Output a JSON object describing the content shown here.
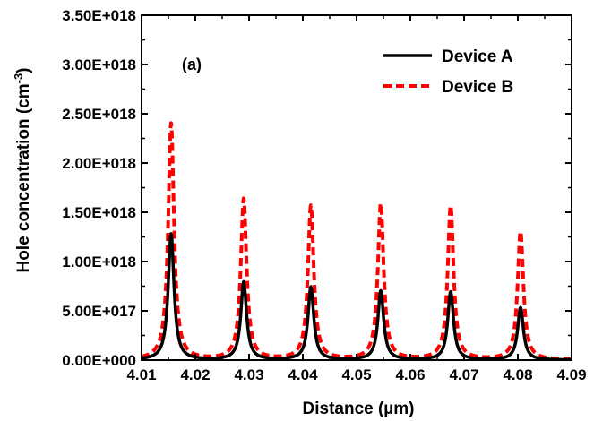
{
  "chart_data": {
    "type": "line",
    "annotation": "(a)",
    "xlabel": "Distance (µm)",
    "ylabel_prefix": "Hole concentration (cm",
    "ylabel_exp": "-3",
    "ylabel_suffix": ")",
    "xlim": [
      4.01,
      4.09
    ],
    "ylim": [
      0,
      3.5e+18
    ],
    "x_ticks": [
      4.01,
      4.02,
      4.03,
      4.04,
      4.05,
      4.06,
      4.07,
      4.08,
      4.09
    ],
    "x_tick_labels": [
      "4.01",
      "4.02",
      "4.03",
      "4.04",
      "4.05",
      "4.06",
      "4.07",
      "4.08",
      "4.09"
    ],
    "y_ticks": [
      0,
      5e+17,
      1e+18,
      1.5e+18,
      2e+18,
      2.5e+18,
      3e+18,
      3.5e+18
    ],
    "y_tick_labels": [
      "0.00E+000",
      "5.00E+017",
      "1.00E+018",
      "1.50E+018",
      "2.00E+018",
      "2.50E+018",
      "3.00E+018",
      "3.50E+018"
    ],
    "grid": false,
    "legend_position": "top-right",
    "series": [
      {
        "name": "Device A",
        "color": "#000000",
        "style": "solid",
        "peaks": [
          {
            "x": 4.0155,
            "y": 1.28e+18
          },
          {
            "x": 4.029,
            "y": 7.9e+17
          },
          {
            "x": 4.0415,
            "y": 7.4e+17
          },
          {
            "x": 4.0545,
            "y": 7e+17
          },
          {
            "x": 4.0675,
            "y": 6.9e+17
          },
          {
            "x": 4.0805,
            "y": 5.3e+17
          }
        ]
      },
      {
        "name": "Device B",
        "color": "#ff0000",
        "style": "dashed",
        "peaks": [
          {
            "x": 4.0155,
            "y": 2.4e+18
          },
          {
            "x": 4.029,
            "y": 1.63e+18
          },
          {
            "x": 4.0415,
            "y": 1.56e+18
          },
          {
            "x": 4.0545,
            "y": 1.58e+18
          },
          {
            "x": 4.0675,
            "y": 1.56e+18
          },
          {
            "x": 4.0805,
            "y": 1.3e+18
          }
        ]
      }
    ]
  }
}
